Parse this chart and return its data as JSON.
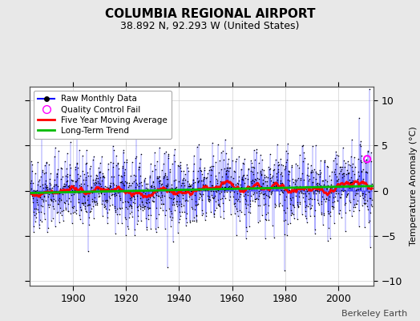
{
  "title": "COLUMBIA REGIONAL AIRPORT",
  "subtitle": "38.892 N, 92.293 W (United States)",
  "ylabel": "Temperature Anomaly (°C)",
  "watermark": "Berkeley Earth",
  "year_start": 1884,
  "year_end": 2013,
  "ylim": [
    -10.5,
    11.5
  ],
  "yticks": [
    -10,
    -5,
    0,
    5,
    10
  ],
  "xticks": [
    1900,
    1920,
    1940,
    1960,
    1980,
    2000
  ],
  "raw_color": "#0000ff",
  "dot_color": "#000000",
  "ma_color": "#ff0000",
  "trend_color": "#00bb00",
  "qc_color": "#ff00ff",
  "background_color": "#e8e8e8",
  "plot_bg_color": "#ffffff",
  "legend_labels": [
    "Raw Monthly Data",
    "Quality Control Fail",
    "Five Year Moving Average",
    "Long-Term Trend"
  ],
  "seed": 42,
  "n_months": 1548,
  "ma_window": 60,
  "qc_fail_index": 1524,
  "qc_fail_value": 3.5
}
